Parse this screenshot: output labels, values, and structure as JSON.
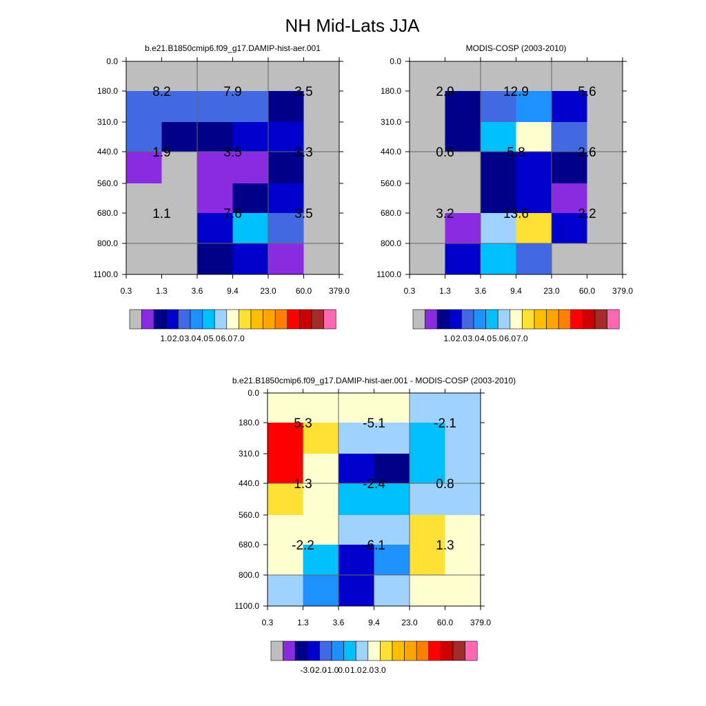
{
  "title": "NH Mid-Lats JJA",
  "colors": {
    "palette": [
      "#bebebe",
      "#8a2be2",
      "#00008b",
      "#0000cd",
      "#4169e1",
      "#1e90ff",
      "#00bfff",
      "#a0d2ff",
      "#ffffd0",
      "#ffe135",
      "#ffbf00",
      "#ffa500",
      "#ff7f00",
      "#ff0000",
      "#cd0000",
      "#a52a2a",
      "#ff69b4"
    ],
    "missing": "#bebebe",
    "grid": "#666666"
  },
  "chart_data": [
    {
      "type": "heatmap",
      "title": "b.e21.B1850cmip6.f09_g17.DAMIP-hist-aer.001",
      "x_ticks": [
        "0.3",
        "1.3",
        "3.6",
        "9.4",
        "23.0",
        "60.0",
        "379.0"
      ],
      "y_ticks": [
        "0.0",
        "180.0",
        "310.0",
        "440.0",
        "560.0",
        "680.0",
        "800.0",
        "1100.0"
      ],
      "cell_colors": [
        [
          0,
          0,
          0,
          0,
          0,
          0
        ],
        [
          4,
          4,
          4,
          4,
          2,
          0
        ],
        [
          4,
          2,
          2,
          3,
          3,
          0
        ],
        [
          1,
          0,
          1,
          1,
          2,
          0
        ],
        [
          0,
          0,
          1,
          2,
          3,
          0
        ],
        [
          0,
          0,
          3,
          6,
          4,
          0
        ],
        [
          0,
          0,
          2,
          3,
          1,
          0
        ]
      ],
      "block_values": [
        [
          "8.2",
          "7.9",
          "3.5"
        ],
        [
          "1.9",
          "3.5",
          "3.3"
        ],
        [
          "1.1",
          "7.6",
          "3.5"
        ]
      ],
      "colorbar_labels": [
        "1.0",
        "2.0",
        "3.0",
        "4.0",
        "5.0",
        "6.0",
        "7.0"
      ]
    },
    {
      "type": "heatmap",
      "title": "MODIS-COSP (2003-2010)",
      "x_ticks": [
        "0.3",
        "1.3",
        "3.6",
        "9.4",
        "23.0",
        "60.0",
        "379.0"
      ],
      "y_ticks": [
        "0.0",
        "180.0",
        "310.0",
        "440.0",
        "560.0",
        "680.0",
        "800.0",
        "1100.0"
      ],
      "cell_colors": [
        [
          0,
          0,
          0,
          0,
          0,
          0
        ],
        [
          0,
          2,
          4,
          5,
          3,
          0
        ],
        [
          0,
          2,
          6,
          8,
          4,
          0
        ],
        [
          0,
          0,
          2,
          3,
          2,
          0
        ],
        [
          0,
          0,
          2,
          3,
          1,
          0
        ],
        [
          0,
          1,
          7,
          9,
          3,
          0
        ],
        [
          0,
          3,
          6,
          4,
          0,
          0
        ]
      ],
      "block_values": [
        [
          "2.9",
          "12.9",
          "5.6"
        ],
        [
          "0.6",
          "5.8",
          "2.6"
        ],
        [
          "3.2",
          "13.6",
          "2.2"
        ]
      ],
      "colorbar_labels": [
        "1.0",
        "2.0",
        "3.0",
        "4.0",
        "5.0",
        "6.0",
        "7.0"
      ]
    },
    {
      "type": "heatmap",
      "title": "b.e21.B1850cmip6.f09_g17.DAMIP-hist-aer.001 - MODIS-COSP (2003-2010)",
      "x_ticks": [
        "0.3",
        "1.3",
        "3.6",
        "9.4",
        "23.0",
        "60.0",
        "379.0"
      ],
      "y_ticks": [
        "0.0",
        "180.0",
        "310.0",
        "440.0",
        "560.0",
        "680.0",
        "800.0",
        "1100.0"
      ],
      "cell_colors": [
        [
          8,
          8,
          8,
          8,
          7,
          7
        ],
        [
          13,
          9,
          7,
          7,
          6,
          7
        ],
        [
          13,
          8,
          3,
          2,
          6,
          7
        ],
        [
          9,
          8,
          6,
          6,
          7,
          7
        ],
        [
          8,
          8,
          7,
          7,
          9,
          8
        ],
        [
          8,
          6,
          3,
          5,
          9,
          8
        ],
        [
          7,
          5,
          3,
          7,
          8,
          8
        ]
      ],
      "block_values": [
        [
          "5.3",
          "-5.1",
          "-2.1"
        ],
        [
          "1.3",
          "-2.4",
          "0.8"
        ],
        [
          "-2.2",
          "-6.1",
          "1.3"
        ]
      ],
      "colorbar_labels": [
        "-3.0",
        "-2.0",
        "-1.0",
        "0.0",
        "1.0",
        "2.0",
        "3.0"
      ]
    }
  ]
}
